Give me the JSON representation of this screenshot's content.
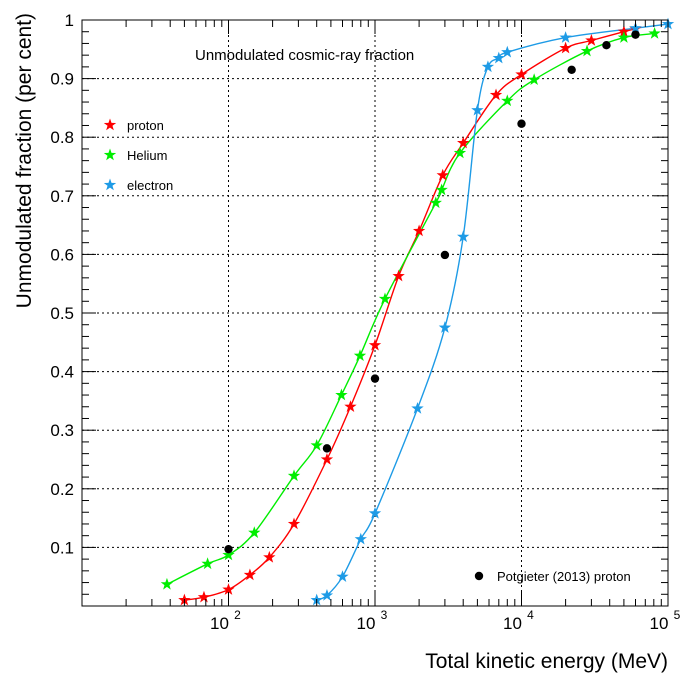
{
  "chart_data": {
    "type": "scatter",
    "title": "Unmodulated cosmic-ray fraction",
    "xlabel": "Total kinetic energy (MeV)",
    "ylabel": "Unmodulated fraction (per cent)",
    "xscale": "log",
    "xlim": [
      10,
      100000
    ],
    "ylim": [
      0,
      1
    ],
    "x_ticks": [
      {
        "value": 100,
        "base": "10",
        "exp": "2"
      },
      {
        "value": 1000,
        "base": "10",
        "exp": "3"
      },
      {
        "value": 10000,
        "base": "10",
        "exp": "4"
      },
      {
        "value": 100000,
        "base": "10",
        "exp": "5"
      }
    ],
    "y_ticks": [
      "0.1",
      "0.2",
      "0.3",
      "0.4",
      "0.5",
      "0.6",
      "0.7",
      "0.8",
      "0.9",
      "1"
    ],
    "grid": true,
    "legend_top": {
      "position": "left",
      "entries": [
        {
          "label": "proton",
          "series": 0
        },
        {
          "label": "Helium",
          "series": 1
        },
        {
          "label": "electron",
          "series": 2
        }
      ]
    },
    "legend_bottom": {
      "position": "bottom-right",
      "entries": [
        {
          "label": "Potgieter (2013) proton",
          "series": 3
        }
      ]
    },
    "series": [
      {
        "name": "proton",
        "color": "#ff0000",
        "marker": "star",
        "line": true,
        "x": [
          50,
          68,
          100,
          140,
          190,
          280,
          470,
          680,
          1000,
          1450,
          2000,
          2900,
          4000,
          6700,
          10000,
          20000,
          30000,
          50000,
          60000
        ],
        "y": [
          0.01,
          0.015,
          0.028,
          0.053,
          0.083,
          0.14,
          0.25,
          0.34,
          0.445,
          0.563,
          0.64,
          0.735,
          0.79,
          0.872,
          0.907,
          0.952,
          0.965,
          0.98,
          0.985
        ]
      },
      {
        "name": "Helium",
        "color": "#00ee00",
        "marker": "star",
        "line": true,
        "x": [
          38,
          72,
          100,
          150,
          280,
          400,
          590,
          790,
          1170,
          2600,
          2850,
          3800,
          8000,
          12200,
          28000,
          50000,
          81000
        ],
        "y": [
          0.037,
          0.072,
          0.087,
          0.125,
          0.222,
          0.274,
          0.36,
          0.427,
          0.524,
          0.688,
          0.71,
          0.773,
          0.862,
          0.898,
          0.947,
          0.97,
          0.977
        ]
      },
      {
        "name": "electron",
        "color": "#1e9be6",
        "marker": "star",
        "line": true,
        "x": [
          400,
          470,
          600,
          800,
          1000,
          1950,
          3000,
          4000,
          5000,
          5900,
          7000,
          8000,
          20000,
          60000,
          100000
        ],
        "y": [
          0.01,
          0.018,
          0.05,
          0.114,
          0.158,
          0.337,
          0.475,
          0.63,
          0.846,
          0.92,
          0.935,
          0.945,
          0.97,
          0.986,
          0.993
        ]
      },
      {
        "name": "Potgieter (2013) proton",
        "color": "#000000",
        "marker": "circle",
        "line": false,
        "x": [
          100,
          470,
          1000,
          3000,
          10000,
          22000,
          38000,
          60000
        ],
        "y": [
          0.097,
          0.269,
          0.388,
          0.599,
          0.823,
          0.915,
          0.957,
          0.975
        ]
      }
    ]
  }
}
